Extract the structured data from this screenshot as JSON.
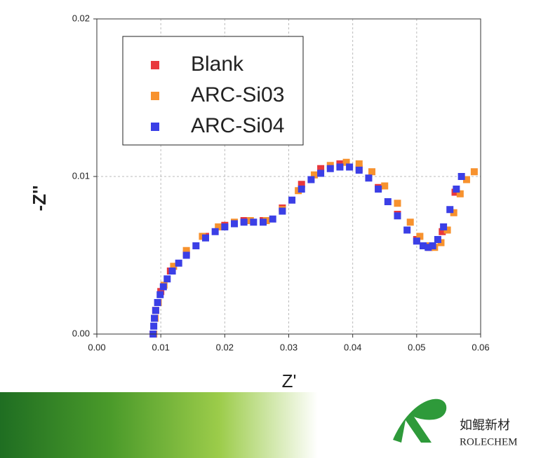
{
  "chart_data": {
    "type": "scatter",
    "x_label": "Z'",
    "y_label": "-Z''",
    "xlim": [
      0,
      0.06
    ],
    "ylim": [
      0,
      0.02
    ],
    "xticks": [
      {
        "value": 0,
        "label": "0.00"
      },
      {
        "value": 0.01,
        "label": "0.01"
      },
      {
        "value": 0.02,
        "label": "0.02"
      },
      {
        "value": 0.03,
        "label": "0.03"
      },
      {
        "value": 0.04,
        "label": "0.04"
      },
      {
        "value": 0.05,
        "label": "0.05"
      },
      {
        "value": 0.06,
        "label": "0.06"
      }
    ],
    "yticks": [
      {
        "value": 0,
        "label": "0.00"
      },
      {
        "value": 0.01,
        "label": "0.01"
      },
      {
        "value": 0.02,
        "label": "0.02"
      }
    ],
    "grid": true,
    "legend": "upper left",
    "series": [
      {
        "name": "Blank",
        "color": "#e8383d",
        "x": [
          0.0088,
          0.0092,
          0.01,
          0.0115,
          0.014,
          0.017,
          0.02,
          0.023,
          0.026,
          0.029,
          0.032,
          0.035,
          0.038,
          0.041,
          0.044,
          0.047,
          0.05,
          0.052,
          0.054,
          0.056
        ],
        "values": [
          0.0,
          0.0015,
          0.0027,
          0.004,
          0.0051,
          0.0062,
          0.0069,
          0.0072,
          0.0072,
          0.008,
          0.0095,
          0.0105,
          0.0108,
          0.0105,
          0.0093,
          0.0076,
          0.006,
          0.0055,
          0.0065,
          0.009
        ]
      },
      {
        "name": "ARC-Si03",
        "color": "#f7922e",
        "x": [
          0.0089,
          0.0091,
          0.0096,
          0.0105,
          0.012,
          0.014,
          0.0165,
          0.019,
          0.0215,
          0.024,
          0.0265,
          0.029,
          0.0315,
          0.034,
          0.0365,
          0.039,
          0.041,
          0.043,
          0.045,
          0.047,
          0.049,
          0.0505,
          0.0518,
          0.0528,
          0.0538,
          0.0548,
          0.0558,
          0.0568,
          0.0578,
          0.059
        ],
        "values": [
          0.0,
          0.001,
          0.002,
          0.0031,
          0.0043,
          0.0053,
          0.0062,
          0.0068,
          0.0071,
          0.0072,
          0.0072,
          0.0079,
          0.0091,
          0.0101,
          0.0107,
          0.0109,
          0.0108,
          0.0103,
          0.0094,
          0.0083,
          0.0071,
          0.0062,
          0.0056,
          0.0055,
          0.0058,
          0.0066,
          0.0077,
          0.0089,
          0.0098,
          0.0103
        ]
      },
      {
        "name": "ARC-Si04",
        "color": "#3b3fe6",
        "x": [
          0.0088,
          0.0089,
          0.009,
          0.0092,
          0.0095,
          0.0099,
          0.0104,
          0.011,
          0.0118,
          0.0128,
          0.014,
          0.0155,
          0.017,
          0.0185,
          0.02,
          0.0215,
          0.023,
          0.0245,
          0.026,
          0.0275,
          0.029,
          0.0305,
          0.032,
          0.0335,
          0.035,
          0.0365,
          0.038,
          0.0395,
          0.041,
          0.0425,
          0.044,
          0.0455,
          0.047,
          0.0485,
          0.05,
          0.051,
          0.0518,
          0.0525,
          0.0533,
          0.0542,
          0.0552,
          0.0562,
          0.057
        ],
        "values": [
          0.0,
          0.0005,
          0.001,
          0.0015,
          0.002,
          0.0025,
          0.003,
          0.0035,
          0.004,
          0.0045,
          0.005,
          0.0056,
          0.0061,
          0.0065,
          0.0068,
          0.007,
          0.0071,
          0.0071,
          0.0071,
          0.0073,
          0.0078,
          0.0085,
          0.0092,
          0.0098,
          0.0102,
          0.0105,
          0.0106,
          0.0106,
          0.0104,
          0.0099,
          0.0092,
          0.0084,
          0.0075,
          0.0066,
          0.0059,
          0.0056,
          0.0055,
          0.0056,
          0.006,
          0.0068,
          0.0079,
          0.0092,
          0.01
        ]
      }
    ]
  },
  "brand": {
    "name_cn": "如鲲新材",
    "name_en": "ROLECHEM"
  }
}
